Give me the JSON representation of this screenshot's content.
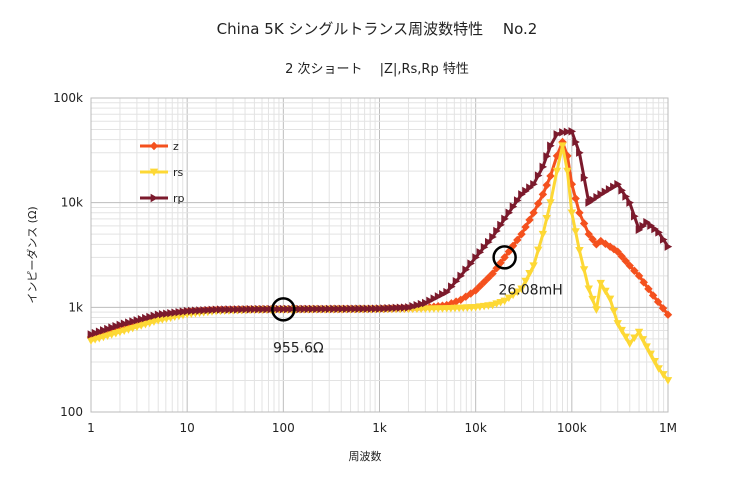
{
  "chart_data": {
    "type": "line",
    "title": "China 5K シングルトランス周波数特性　 No.2",
    "subtitle": "2 次ショート　 |Z|,Rs,Rp 特性",
    "xlabel": "周波数",
    "ylabel": "インピーダンス (Ω)",
    "x_scale": "log",
    "y_scale": "log",
    "xlim": [
      1,
      1000000
    ],
    "ylim": [
      100,
      100000
    ],
    "x_ticks": [
      {
        "value": 1,
        "label": "1"
      },
      {
        "value": 10,
        "label": "10"
      },
      {
        "value": 100,
        "label": "100"
      },
      {
        "value": 1000,
        "label": "1k"
      },
      {
        "value": 10000,
        "label": "10k"
      },
      {
        "value": 100000,
        "label": "100k"
      },
      {
        "value": 1000000,
        "label": "1M"
      }
    ],
    "y_ticks": [
      {
        "value": 100,
        "label": "100"
      },
      {
        "value": 1000,
        "label": "1k"
      },
      {
        "value": 10000,
        "label": "10k"
      },
      {
        "value": 100000,
        "label": "100k"
      }
    ],
    "grid": true,
    "legend_position": "top-left",
    "series": [
      {
        "name": "z",
        "color": "#f4511e",
        "marker": "diamond",
        "points": [
          [
            1,
            520
          ],
          [
            2,
            640
          ],
          [
            5,
            810
          ],
          [
            10,
            900
          ],
          [
            20,
            940
          ],
          [
            50,
            955
          ],
          [
            100,
            958
          ],
          [
            200,
            960
          ],
          [
            500,
            962
          ],
          [
            1000,
            965
          ],
          [
            2000,
            975
          ],
          [
            3000,
            990
          ],
          [
            5000,
            1050
          ],
          [
            7000,
            1180
          ],
          [
            10000,
            1450
          ],
          [
            15000,
            2100
          ],
          [
            20000,
            3000
          ],
          [
            30000,
            5000
          ],
          [
            40000,
            8000
          ],
          [
            50000,
            12000
          ],
          [
            60000,
            18000
          ],
          [
            70000,
            28000
          ],
          [
            80000,
            38000
          ],
          [
            90000,
            28000
          ],
          [
            100000,
            15000
          ],
          [
            120000,
            8000
          ],
          [
            150000,
            5000
          ],
          [
            180000,
            4000
          ],
          [
            200000,
            4300
          ],
          [
            250000,
            3800
          ],
          [
            300000,
            3400
          ],
          [
            400000,
            2500
          ],
          [
            500000,
            2000
          ],
          [
            700000,
            1300
          ],
          [
            1000000,
            850
          ]
        ]
      },
      {
        "name": "rs",
        "color": "#fdd835",
        "marker": "triangle-down",
        "points": [
          [
            1,
            480
          ],
          [
            2,
            580
          ],
          [
            5,
            750
          ],
          [
            10,
            860
          ],
          [
            20,
            920
          ],
          [
            50,
            950
          ],
          [
            100,
            955
          ],
          [
            200,
            958
          ],
          [
            500,
            960
          ],
          [
            1000,
            962
          ],
          [
            2000,
            965
          ],
          [
            3000,
            968
          ],
          [
            5000,
            975
          ],
          [
            10000,
            1000
          ],
          [
            15000,
            1050
          ],
          [
            20000,
            1150
          ],
          [
            30000,
            1500
          ],
          [
            40000,
            2500
          ],
          [
            50000,
            5000
          ],
          [
            60000,
            10000
          ],
          [
            70000,
            20000
          ],
          [
            80000,
            35000
          ],
          [
            90000,
            20000
          ],
          [
            100000,
            8000
          ],
          [
            120000,
            3500
          ],
          [
            150000,
            1500
          ],
          [
            180000,
            950
          ],
          [
            200000,
            1700
          ],
          [
            250000,
            1200
          ],
          [
            300000,
            700
          ],
          [
            400000,
            450
          ],
          [
            500000,
            580
          ],
          [
            600000,
            420
          ],
          [
            800000,
            260
          ],
          [
            1000000,
            200
          ]
        ]
      },
      {
        "name": "rp",
        "color": "#7b1a2c",
        "marker": "triangle-right",
        "points": [
          [
            1,
            550
          ],
          [
            2,
            680
          ],
          [
            5,
            850
          ],
          [
            10,
            920
          ],
          [
            20,
            950
          ],
          [
            50,
            960
          ],
          [
            100,
            962
          ],
          [
            200,
            965
          ],
          [
            500,
            968
          ],
          [
            1000,
            972
          ],
          [
            2000,
            1000
          ],
          [
            3000,
            1100
          ],
          [
            5000,
            1400
          ],
          [
            7000,
            2000
          ],
          [
            10000,
            3000
          ],
          [
            15000,
            4700
          ],
          [
            20000,
            7000
          ],
          [
            30000,
            12000
          ],
          [
            40000,
            15000
          ],
          [
            50000,
            22000
          ],
          [
            60000,
            35000
          ],
          [
            70000,
            45000
          ],
          [
            80000,
            47000
          ],
          [
            100000,
            48000
          ],
          [
            120000,
            30000
          ],
          [
            150000,
            10000
          ],
          [
            200000,
            12000
          ],
          [
            300000,
            15000
          ],
          [
            400000,
            10000
          ],
          [
            500000,
            5500
          ],
          [
            600000,
            6500
          ],
          [
            800000,
            5200
          ],
          [
            1000000,
            3800
          ]
        ]
      }
    ],
    "annotations": [
      {
        "text": "955.6Ω",
        "x": 100,
        "y": 955.6
      },
      {
        "text": "26.08mH",
        "x": 20000,
        "y": 3000
      }
    ]
  }
}
